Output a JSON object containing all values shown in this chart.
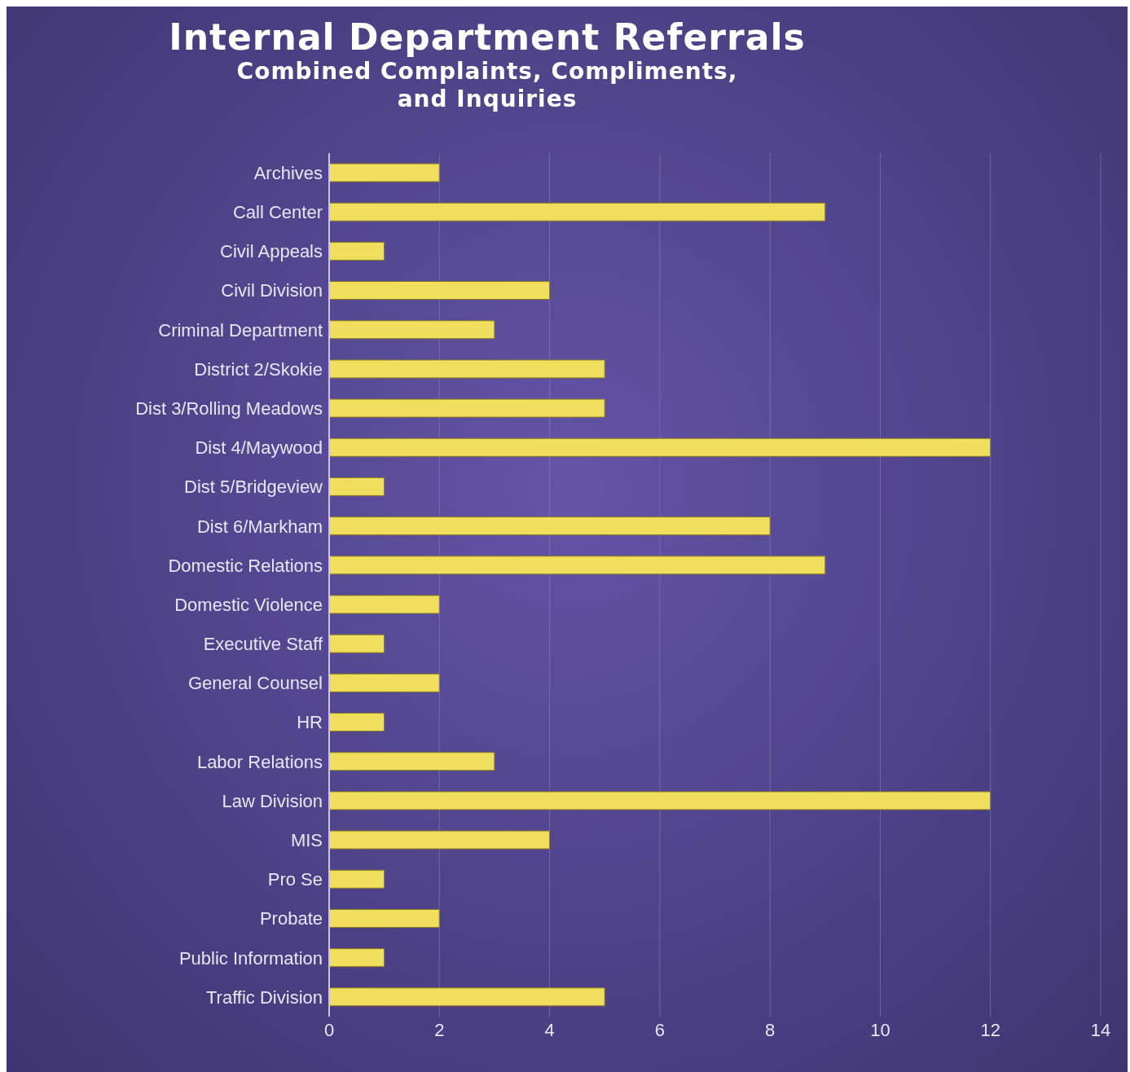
{
  "chart_data": {
    "type": "bar",
    "orientation": "horizontal",
    "title": "Internal Department Referrals",
    "subtitle": "Combined Complaints, Compliments, and Inquiries",
    "categories": [
      "Archives",
      "Call Center",
      "Civil Appeals",
      "Civil Division",
      "Criminal Department",
      "District 2/Skokie",
      "Dist 3/Rolling Meadows",
      "Dist 4/Maywood",
      "Dist 5/Bridgeview",
      "Dist 6/Markham",
      "Domestic Relations",
      "Domestic Violence",
      "Executive Staff",
      "General Counsel",
      "HR",
      "Labor Relations",
      "Law Division",
      "MIS",
      "Pro Se",
      "Probate",
      "Public Information",
      "Traffic Division"
    ],
    "values": [
      2,
      9,
      1,
      4,
      3,
      5,
      5,
      12,
      1,
      8,
      9,
      2,
      1,
      2,
      1,
      3,
      12,
      4,
      1,
      2,
      1,
      5
    ],
    "color": "#f0df5c",
    "xlim": [
      0,
      14
    ],
    "xticks": [
      0,
      2,
      4,
      6,
      8,
      10,
      12,
      14
    ],
    "grid": "x"
  }
}
